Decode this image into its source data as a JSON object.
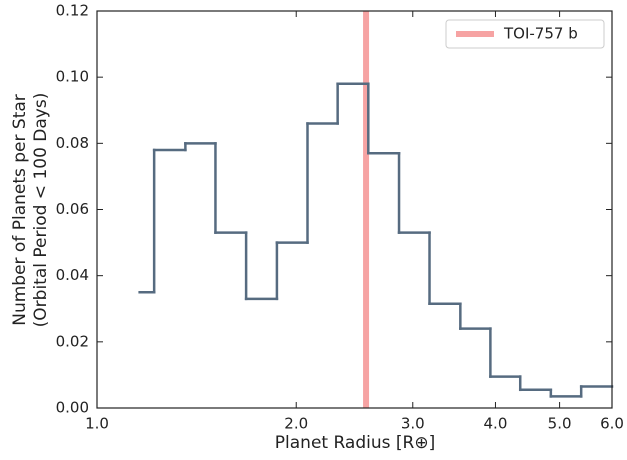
{
  "chart_data": {
    "type": "histogram",
    "xscale": "log",
    "xlabel": "Planet Radius [R⊕]",
    "ylabel": [
      "Number of Planets per Star",
      "(Orbital Period < 100 Days)"
    ],
    "bins": [
      1.16,
      1.22,
      1.36,
      1.51,
      1.68,
      1.87,
      2.08,
      2.31,
      2.57,
      2.86,
      3.18,
      3.54,
      3.93,
      4.36,
      4.85,
      5.39,
      6.0
    ],
    "values": [
      0.035,
      0.078,
      0.08,
      0.053,
      0.033,
      0.05,
      0.086,
      0.098,
      0.077,
      0.053,
      0.0315,
      0.024,
      0.0095,
      0.0055,
      0.0035,
      0.0065
    ],
    "color": "#566b80",
    "xlim": [
      1.0,
      6.0
    ],
    "xticks": [
      {
        "value": 1,
        "label": "1.0"
      },
      {
        "value": 2,
        "label": "2.0"
      },
      {
        "value": 3,
        "label": "3.0"
      },
      {
        "value": 4,
        "label": "4.0"
      },
      {
        "value": 5,
        "label": "5.0"
      },
      {
        "value": 6,
        "label": "6.0"
      }
    ],
    "ylim": [
      0,
      0.12
    ],
    "yticks": [
      {
        "value": 0,
        "label": "0.00"
      },
      {
        "value": 0.02,
        "label": "0.02"
      },
      {
        "value": 0.04,
        "label": "0.04"
      },
      {
        "value": 0.06,
        "label": "0.06"
      },
      {
        "value": 0.08,
        "label": "0.08"
      },
      {
        "value": 0.1,
        "label": "0.10"
      },
      {
        "value": 0.12,
        "label": "0.12"
      }
    ],
    "vline": {
      "x": 2.55,
      "label": "TOI-757 b",
      "color": "#f6a3a3"
    },
    "legend": "upper right"
  }
}
